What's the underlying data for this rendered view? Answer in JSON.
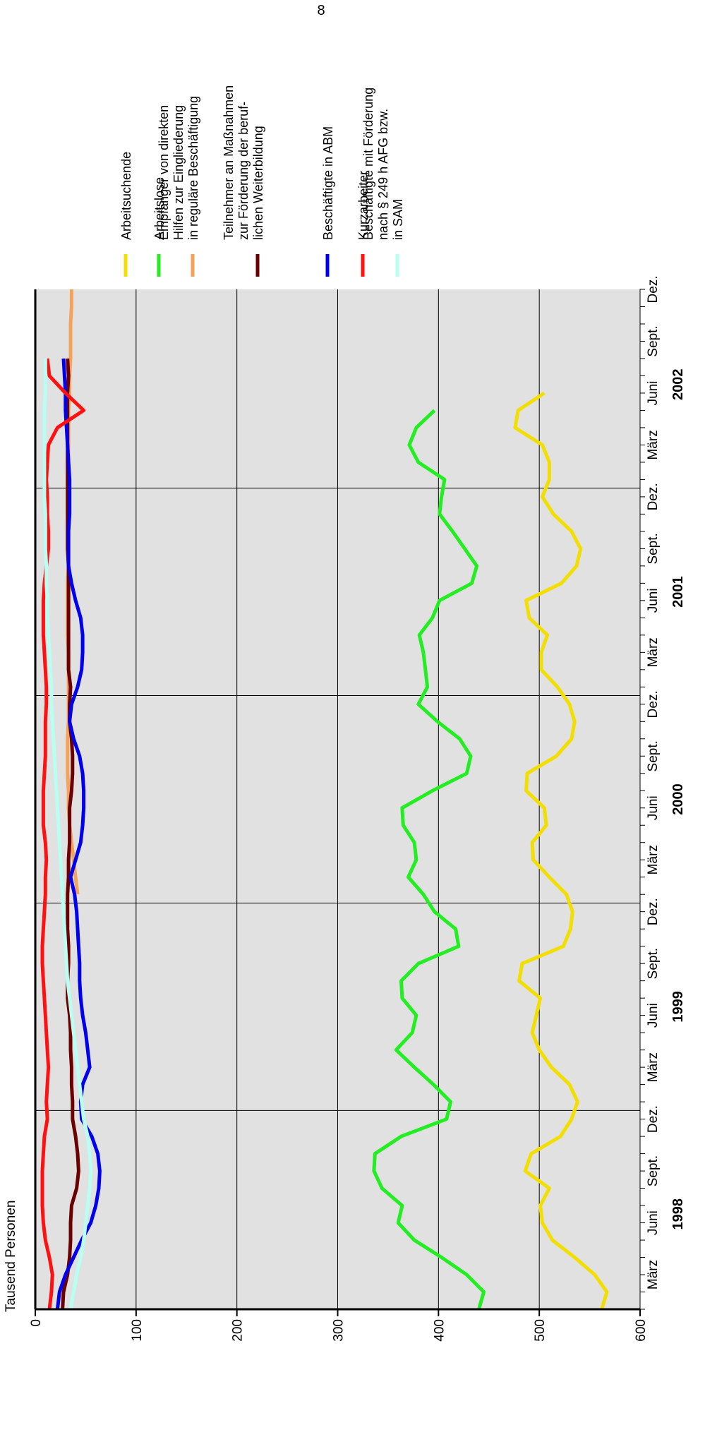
{
  "page": {
    "number": "8"
  },
  "chart_data": {
    "type": "line",
    "ylabel": "Tausend Personen",
    "ylim": [
      0,
      600
    ],
    "yticks": [
      0,
      100,
      200,
      300,
      400,
      500,
      600
    ],
    "x_tick_labels": [
      "März",
      "Juni",
      "Sept.",
      "Dez."
    ],
    "x_year_labels": [
      "1998",
      "1999",
      "2000",
      "2001",
      "2002"
    ],
    "x_range": [
      "1998-01",
      "2002-12"
    ],
    "grid": true,
    "legend_position": "right",
    "series": [
      {
        "name": "Arbeitsuchende",
        "color": "#f2de00",
        "start": "1998-01",
        "values": [
          562,
          567,
          555,
          535,
          513,
          503,
          501,
          510,
          486,
          492,
          521,
          532,
          538,
          530,
          512,
          500,
          493,
          497,
          501,
          480,
          483,
          524,
          531,
          533,
          527,
          510,
          494,
          493,
          507,
          505,
          487,
          488,
          517,
          532,
          535,
          530,
          518,
          502,
          502,
          508,
          490,
          487,
          522,
          537,
          541,
          532,
          514,
          503,
          510,
          510,
          503,
          476,
          479,
          505
        ]
      },
      {
        "name": "Arbeitslose",
        "color": "#22ee22",
        "start": "1998-01",
        "values": [
          440,
          445,
          428,
          403,
          376,
          360,
          364,
          344,
          336,
          337,
          363,
          408,
          412,
          395,
          376,
          358,
          374,
          378,
          364,
          363,
          380,
          420,
          417,
          396,
          385,
          370,
          378,
          376,
          365,
          364,
          394,
          428,
          432,
          421,
          399,
          380,
          389,
          387,
          385,
          381,
          394,
          401,
          433,
          438,
          426,
          414,
          401,
          403,
          406,
          380,
          371,
          378,
          396
        ]
      },
      {
        "name": "Empfänger von direkten Hilfen zur Eingliederung in reguläre Beschäftigung",
        "color": "#f5a35a",
        "start": "2000-01",
        "values": [
          42,
          40,
          38,
          36,
          34,
          33,
          33,
          32,
          32,
          32,
          33,
          33,
          33,
          33,
          33,
          32,
          32,
          32,
          32,
          33,
          33,
          33,
          33,
          33,
          33,
          33,
          33,
          33,
          33,
          34,
          34,
          35,
          35,
          35,
          36,
          36
        ]
      },
      {
        "name": "Teilnehmer an Maßnahmen zur Förderung der beruflichen Weiterbildung",
        "color": "#6b0000",
        "start": "1998-01",
        "values": [
          27,
          28,
          32,
          34,
          35,
          35,
          36,
          41,
          43,
          42,
          40,
          37,
          37,
          36,
          36,
          35,
          35,
          34,
          32,
          32,
          33,
          33,
          32,
          32,
          32,
          33,
          33,
          34,
          34,
          34,
          36,
          37,
          37,
          36,
          34,
          34,
          35,
          33,
          33,
          33,
          33,
          33,
          33,
          33,
          32,
          32,
          32,
          32,
          32,
          32,
          32,
          32,
          32,
          32,
          33,
          32
        ]
      },
      {
        "name": "Beschäftigte in ABM",
        "color": "#0000ee",
        "start": "1998-01",
        "values": [
          22,
          24,
          30,
          38,
          46,
          55,
          60,
          63,
          64,
          62,
          56,
          46,
          45,
          47,
          54,
          52,
          50,
          47,
          45,
          44,
          44,
          43,
          42,
          41,
          39,
          35,
          40,
          45,
          47,
          48,
          48,
          47,
          44,
          38,
          34,
          36,
          42,
          46,
          47,
          47,
          45,
          40,
          36,
          33,
          33,
          33,
          34,
          34,
          34,
          33,
          32,
          31,
          30,
          30,
          29,
          28
        ]
      },
      {
        "name": "Kurzarbeiter",
        "color": "#ff1111",
        "start": "1998-01",
        "values": [
          14,
          16,
          17,
          14,
          10,
          8,
          7,
          7,
          7,
          8,
          9,
          12,
          11,
          12,
          13,
          12,
          11,
          10,
          9,
          8,
          7,
          7,
          8,
          9,
          10,
          10,
          11,
          10,
          8,
          8,
          8,
          9,
          10,
          10,
          10,
          11,
          11,
          10,
          9,
          8,
          8,
          8,
          9,
          11,
          13,
          13,
          12,
          12,
          11,
          12,
          13,
          22,
          48,
          30,
          14,
          12
        ]
      },
      {
        "name": "Beschäftigte mit Förderung nach § 249 h AFG bzw. in SAM",
        "color": "#b8fff2",
        "start": "1998-01",
        "values": [
          35,
          38,
          41,
          45,
          48,
          50,
          52,
          54,
          55,
          54,
          52,
          48,
          46,
          44,
          42,
          40,
          38,
          36,
          34,
          32,
          31,
          30,
          29,
          28,
          27,
          26,
          25,
          24,
          23,
          22,
          21,
          20,
          19,
          18,
          17,
          16,
          16,
          15,
          14,
          13,
          12,
          12,
          11,
          11,
          10,
          10,
          10,
          9,
          9,
          9,
          9,
          9,
          9,
          10,
          10,
          10
        ]
      }
    ]
  }
}
